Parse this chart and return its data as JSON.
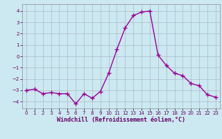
{
  "x": [
    0,
    1,
    2,
    3,
    4,
    5,
    6,
    7,
    8,
    9,
    10,
    11,
    12,
    13,
    14,
    15,
    16,
    17,
    18,
    19,
    20,
    21,
    22,
    23
  ],
  "y": [
    -3.0,
    -2.9,
    -3.3,
    -3.2,
    -3.3,
    -3.3,
    -4.2,
    -3.3,
    -3.7,
    -3.1,
    -1.5,
    0.6,
    2.5,
    3.6,
    3.9,
    4.0,
    0.1,
    -0.8,
    -1.5,
    -1.7,
    -2.4,
    -2.6,
    -3.4,
    -3.6
  ],
  "line_color": "#990099",
  "marker": "+",
  "marker_size": 4,
  "linewidth": 1.0,
  "background_color": "#cce8f0",
  "grid_color": "#aabbcc",
  "xlabel": "Windchill (Refroidissement éolien,°C)",
  "xlabel_color": "#660066",
  "ylabel_ticks": [
    -4,
    -3,
    -2,
    -1,
    0,
    1,
    2,
    3,
    4
  ],
  "xlim": [
    -0.5,
    23.5
  ],
  "ylim": [
    -4.6,
    4.6
  ],
  "xtick_labels": [
    "0",
    "1",
    "2",
    "3",
    "4",
    "5",
    "6",
    "7",
    "8",
    "9",
    "10",
    "11",
    "12",
    "13",
    "14",
    "15",
    "16",
    "17",
    "18",
    "19",
    "20",
    "21",
    "22",
    "23"
  ],
  "tick_color": "#660066",
  "tick_fontsize": 5.0,
  "xlabel_fontsize": 6.0,
  "spine_color": "#888899"
}
